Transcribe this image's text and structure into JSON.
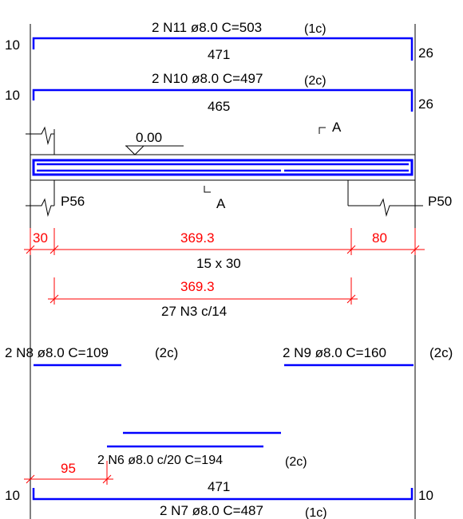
{
  "labels": {
    "top_bar_1_desc": "2 N11 ø8.0 C=503",
    "top_bar_1_layer": "(1c)",
    "top_bar_1_left_hook": "10",
    "top_bar_1_length": "471",
    "top_bar_1_right_hook": "26",
    "top_bar_2_desc": "2 N10 ø8.0 C=497",
    "top_bar_2_layer": "(2c)",
    "top_bar_2_left_hook": "10",
    "top_bar_2_length": "465",
    "top_bar_2_right_hook": "26",
    "level": "0.00",
    "section_top": "A",
    "section_bottom": "A",
    "support_left": "P56",
    "support_right": "P50",
    "dim_left": "30",
    "dim_span": "369.3",
    "dim_right": "80",
    "dim_stirrup_spacing_label": "15 x 30",
    "dim_stirrups": "369.3",
    "stirrups_desc": "27 N3 c/14",
    "n8_desc": "2 N8 ø8.0 C=109",
    "n8_layer": "(2c)",
    "n9_desc": "2 N9 ø8.0 C=160",
    "n9_layer": "(2c)",
    "n6_desc": "2 N6 ø8.0 c/20 C=194",
    "n6_layer": "(2c)",
    "dim_n6_offset": "95",
    "bottom_left_hook": "10",
    "bottom_length": "471",
    "bottom_right_hook": "10",
    "bottom_desc": "2 N7 ø8.0 C=487",
    "bottom_layer": "(1c)"
  },
  "colors": {
    "rebar": "#0000ff",
    "dimension": "#ff0000",
    "geometry": "#000000"
  }
}
